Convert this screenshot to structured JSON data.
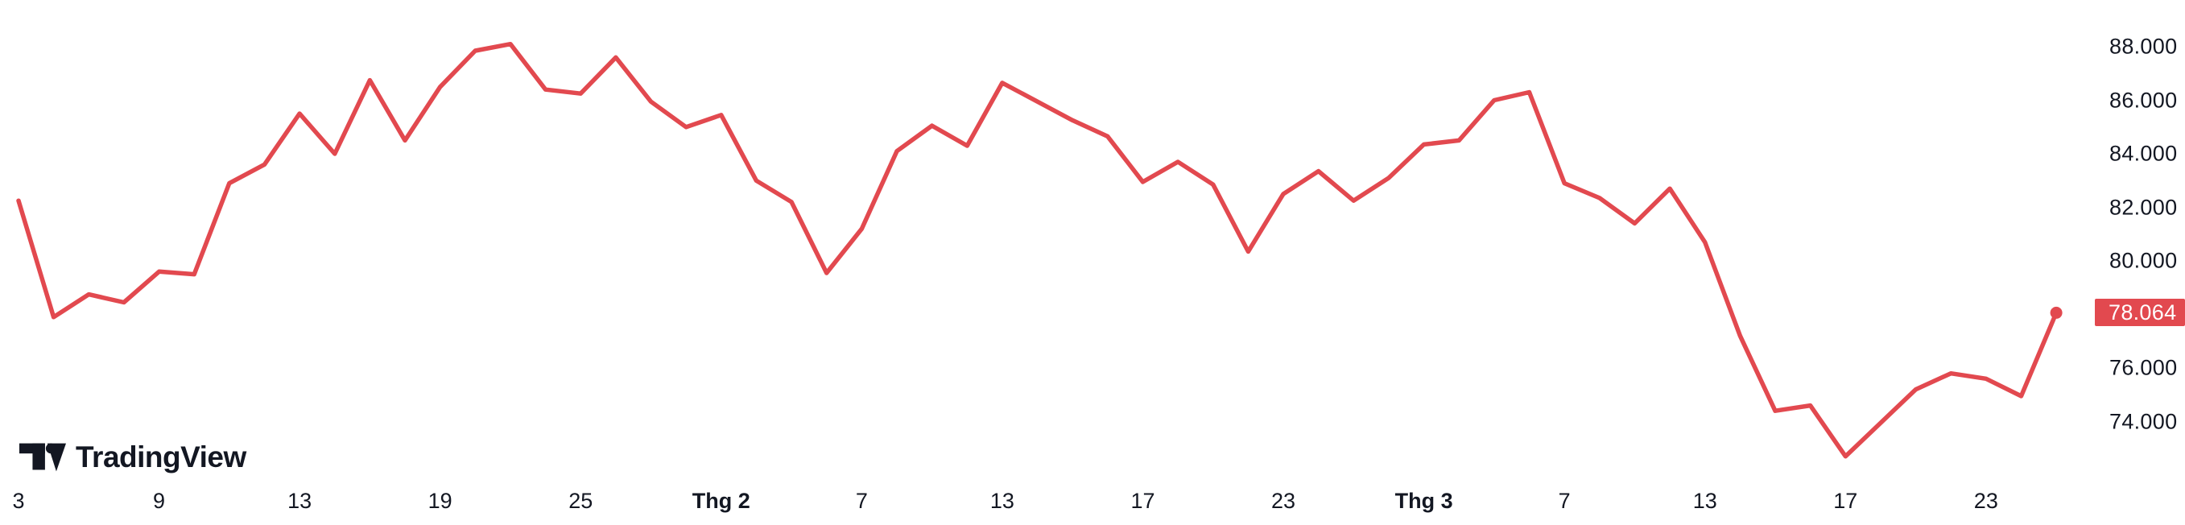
{
  "page": {
    "background_color": "#FFFFFF"
  },
  "logo": {
    "wordmark": "TradingView",
    "color": "#131722"
  },
  "price_scale": {
    "last_price_label": "78.064",
    "badge_color": "#E2494F",
    "badge_text_color": "#FFFFFF",
    "tick_text_color": "#131722"
  },
  "chart_data": {
    "type": "line",
    "title": "",
    "xlabel": "",
    "ylabel": "",
    "grid": false,
    "legend_position": "none",
    "line_color": "#E2494F",
    "marker": "dot-on-last-point",
    "ylim": [
      71.5,
      89.2
    ],
    "y_ticks": [
      {
        "label": "88.000",
        "value": 88
      },
      {
        "label": "86.000",
        "value": 86
      },
      {
        "label": "84.000",
        "value": 84
      },
      {
        "label": "82.000",
        "value": 82
      },
      {
        "label": "80.000",
        "value": 80
      },
      {
        "label": "76.000",
        "value": 76
      },
      {
        "label": "74.000",
        "value": 74
      }
    ],
    "x_labels": [
      {
        "text": "3",
        "bold": false
      },
      {
        "text": "9",
        "bold": false
      },
      {
        "text": "13",
        "bold": false
      },
      {
        "text": "19",
        "bold": false
      },
      {
        "text": "25",
        "bold": false
      },
      {
        "text": "Thg 2",
        "bold": true
      },
      {
        "text": "7",
        "bold": false
      },
      {
        "text": "13",
        "bold": false
      },
      {
        "text": "17",
        "bold": false
      },
      {
        "text": "23",
        "bold": false
      },
      {
        "text": "Thg 3",
        "bold": true
      },
      {
        "text": "7",
        "bold": false
      },
      {
        "text": "13",
        "bold": false
      },
      {
        "text": "17",
        "bold": false
      },
      {
        "text": "23",
        "bold": false
      }
    ],
    "x_label_every_n_points": 4,
    "values": [
      82.25,
      77.9,
      78.75,
      78.45,
      79.6,
      79.5,
      82.9,
      83.6,
      85.5,
      84.0,
      86.75,
      84.5,
      86.5,
      87.85,
      88.1,
      86.4,
      86.25,
      87.6,
      85.95,
      85.0,
      85.45,
      83.0,
      82.2,
      79.55,
      81.2,
      84.1,
      85.05,
      84.3,
      86.65,
      85.95,
      85.25,
      84.65,
      82.95,
      83.7,
      82.85,
      80.35,
      82.5,
      83.35,
      82.25,
      83.1,
      84.35,
      84.5,
      86.0,
      86.3,
      82.9,
      82.35,
      81.4,
      82.7,
      80.7,
      77.2,
      74.4,
      74.6,
      72.7,
      73.95,
      75.2,
      75.8,
      75.6,
      74.95,
      78.064
    ],
    "last_value": 78.064
  }
}
